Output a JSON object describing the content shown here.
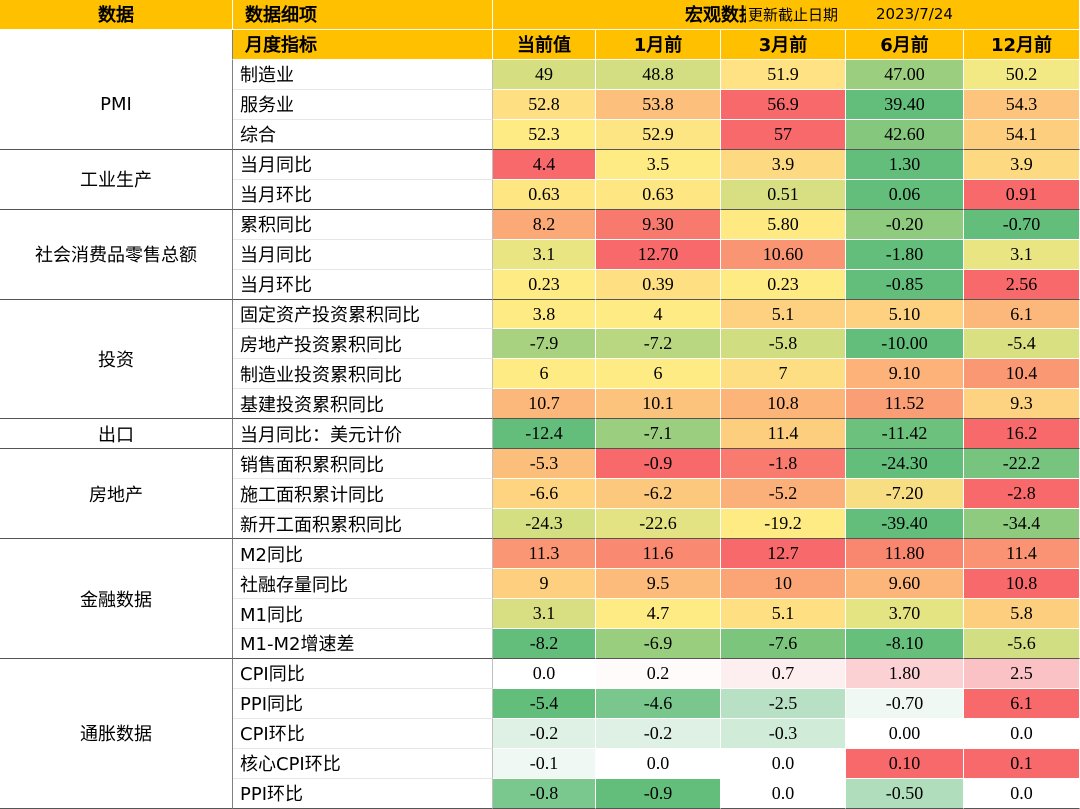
{
  "header": {
    "col_category": "数据",
    "col_item": "数据细项",
    "title": "宏观数据看板",
    "update_label": "更新截止日期",
    "update_date": "2023/7/24"
  },
  "subheader": {
    "label": "月度指标",
    "periods": [
      "当前值",
      "1月前",
      "3月前",
      "6月前",
      "12月前"
    ]
  },
  "colors": {
    "header_bg": "#FFC000",
    "red": "#F8696B",
    "yellow": "#FFEB84",
    "green": "#63BE7B",
    "white": "#FFFFFF"
  },
  "groups": [
    {
      "name": "PMI",
      "rows": [
        {
          "item": "制造业",
          "values": [
            "49",
            "48.8",
            "51.9",
            "47.00",
            "50.2"
          ],
          "colors": [
            "#D5DF82",
            "#D2DE81",
            "#FEE283",
            "#9BCE7F",
            "#F2E884"
          ]
        },
        {
          "item": "服务业",
          "values": [
            "52.8",
            "53.8",
            "56.9",
            "39.40",
            "54.3"
          ],
          "colors": [
            "#FEDF82",
            "#FCC07C",
            "#F8696B",
            "#63BE7B",
            "#FCC47C"
          ]
        },
        {
          "item": "综合",
          "values": [
            "52.3",
            "52.9",
            "57",
            "42.60",
            "54.1"
          ],
          "colors": [
            "#FFEB84",
            "#FEE583",
            "#F8696B",
            "#85C77D",
            "#FDCE7E"
          ]
        }
      ]
    },
    {
      "name": "工业生产",
      "rows": [
        {
          "item": "当月同比",
          "values": [
            "4.4",
            "3.5",
            "3.9",
            "1.30",
            "3.9"
          ],
          "colors": [
            "#F8696B",
            "#FFEB84",
            "#FDDA81",
            "#63BE7B",
            "#FDDA81"
          ]
        },
        {
          "item": "当月环比",
          "values": [
            "0.63",
            "0.63",
            "0.51",
            "0.06",
            "0.91"
          ],
          "colors": [
            "#FEE683",
            "#FEE683",
            "#D7DF82",
            "#63BE7B",
            "#F8696B"
          ]
        }
      ]
    },
    {
      "name": "社会消费品零售总额",
      "rows": [
        {
          "item": "累积同比",
          "values": [
            "8.2",
            "9.30",
            "5.80",
            "-0.20",
            "-0.70"
          ],
          "colors": [
            "#FBA977",
            "#F8796E",
            "#FEE983",
            "#8FCB7E",
            "#63BE7B"
          ]
        },
        {
          "item": "当月同比",
          "values": [
            "3.1",
            "12.70",
            "10.60",
            "-1.80",
            "3.1"
          ],
          "colors": [
            "#EAE583",
            "#F8696B",
            "#FA9573",
            "#63BE7B",
            "#EAE583"
          ]
        },
        {
          "item": "当月环比",
          "values": [
            "0.23",
            "0.39",
            "0.23",
            "-0.85",
            "2.56"
          ],
          "colors": [
            "#FFEB84",
            "#FEE082",
            "#FFEB84",
            "#63BE7B",
            "#F8696B"
          ]
        }
      ]
    },
    {
      "name": "投资",
      "rows": [
        {
          "item": "固定资产投资累积同比",
          "values": [
            "3.8",
            "4",
            "5.1",
            "5.10",
            "6.1"
          ],
          "colors": [
            "#FFEB84",
            "#FFEB84",
            "#FDD17F",
            "#FDD17F",
            "#FCB87A"
          ]
        },
        {
          "item": "房地产投资累积同比",
          "values": [
            "-7.9",
            "-7.2",
            "-5.8",
            "-10.00",
            "-5.4"
          ],
          "colors": [
            "#A8D27F",
            "#B9D780",
            "#D0DD81",
            "#63BE7B",
            "#D9E082"
          ]
        },
        {
          "item": "制造业投资累积同比",
          "values": [
            "6",
            "6",
            "7",
            "9.10",
            "10.4"
          ],
          "colors": [
            "#FFEB84",
            "#FFEB84",
            "#FEDE82",
            "#FCB279",
            "#FA9874"
          ]
        },
        {
          "item": "基建投资累积同比",
          "values": [
            "10.7",
            "10.1",
            "10.8",
            "11.52",
            "9.3"
          ],
          "colors": [
            "#FCB87A",
            "#FCC37C",
            "#FCB479",
            "#FA9E75",
            "#FDD280"
          ]
        }
      ]
    },
    {
      "name": "出口",
      "rows": [
        {
          "item": "当月同比：美元计价",
          "values": [
            "-12.4",
            "-7.1",
            "11.4",
            "-11.42",
            "16.2"
          ],
          "colors": [
            "#63BE7B",
            "#9BCF7F",
            "#FDCE7E",
            "#6CC17C",
            "#F8696B"
          ]
        }
      ]
    },
    {
      "name": "房地产",
      "rows": [
        {
          "item": "销售面积累积同比",
          "values": [
            "-5.3",
            "-0.9",
            "-1.8",
            "-24.30",
            "-22.2"
          ],
          "colors": [
            "#FCBE7B",
            "#F8696B",
            "#F97A6E",
            "#63BE7B",
            "#76C47D"
          ]
        },
        {
          "item": "施工面积累计同比",
          "values": [
            "-6.6",
            "-6.2",
            "-5.2",
            "-7.20",
            "-2.8"
          ],
          "colors": [
            "#FFD481",
            "#FCC87D",
            "#FBB079",
            "#F8DE83",
            "#F8696B"
          ]
        },
        {
          "item": "新开工面积累积同比",
          "values": [
            "-24.3",
            "-22.6",
            "-19.2",
            "-39.40",
            "-34.4"
          ],
          "colors": [
            "#D4DF82",
            "#E3E383",
            "#FFEB84",
            "#63BE7B",
            "#8FCB7E"
          ]
        }
      ]
    },
    {
      "name": "金融数据",
      "rows": [
        {
          "item": "M2同比",
          "values": [
            "11.3",
            "11.6",
            "12.7",
            "11.80",
            "11.4"
          ],
          "colors": [
            "#FA9673",
            "#F98A71",
            "#F8696B",
            "#F98770",
            "#FA9373"
          ]
        },
        {
          "item": "社融存量同比",
          "values": [
            "9",
            "9.5",
            "10",
            "9.60",
            "10.8"
          ],
          "colors": [
            "#FDCF7F",
            "#FCBA7B",
            "#FBA577",
            "#FCB67A",
            "#F8696B"
          ]
        },
        {
          "item": "M1同比",
          "values": [
            "3.1",
            "4.7",
            "5.1",
            "3.70",
            "5.8"
          ],
          "colors": [
            "#D7DF82",
            "#FFEB84",
            "#FEE082",
            "#E5E483",
            "#FCCE7E"
          ]
        },
        {
          "item": "M1-M2增速差",
          "values": [
            "-8.2",
            "-6.9",
            "-7.6",
            "-8.10",
            "-5.6"
          ],
          "colors": [
            "#63BE7B",
            "#9ACE7F",
            "#7CC57D",
            "#67BF7C",
            "#D2DE82"
          ]
        }
      ]
    },
    {
      "name": "通胀数据",
      "rows": [
        {
          "item": "CPI同比",
          "values": [
            "0.0",
            "0.2",
            "0.7",
            "1.80",
            "2.5"
          ],
          "colors": [
            "#FFFFFF",
            "#FFFBFB",
            "#FDEEEF",
            "#FBD1D3",
            "#FAC2C4"
          ]
        },
        {
          "item": "PPI同比",
          "values": [
            "-5.4",
            "-4.6",
            "-2.5",
            "-0.70",
            "6.1"
          ],
          "colors": [
            "#63BE7B",
            "#7AC78E",
            "#B8E0C4",
            "#EFF8F2",
            "#F8696B"
          ]
        },
        {
          "item": "CPI环比",
          "values": [
            "-0.2",
            "-0.2",
            "-0.3",
            "0.00",
            "0.0"
          ],
          "colors": [
            "#DFF0E4",
            "#DFF0E4",
            "#D1EBD9",
            "#FFFFFF",
            "#FFFFFF"
          ]
        },
        {
          "item": "核心CPI环比",
          "values": [
            "-0.1",
            "0.0",
            "0.0",
            "0.10",
            "0.1"
          ],
          "colors": [
            "#EFF8F2",
            "#FFFFFF",
            "#FFFFFF",
            "#F8696B",
            "#F8696B"
          ]
        },
        {
          "item": "PPI环比",
          "values": [
            "-0.8",
            "-0.9",
            "0.0",
            "-0.50",
            "0.0"
          ],
          "colors": [
            "#7BC88E",
            "#63BE7B",
            "#FFFFFF",
            "#B0DDBC",
            "#FFFFFF"
          ]
        }
      ]
    }
  ]
}
